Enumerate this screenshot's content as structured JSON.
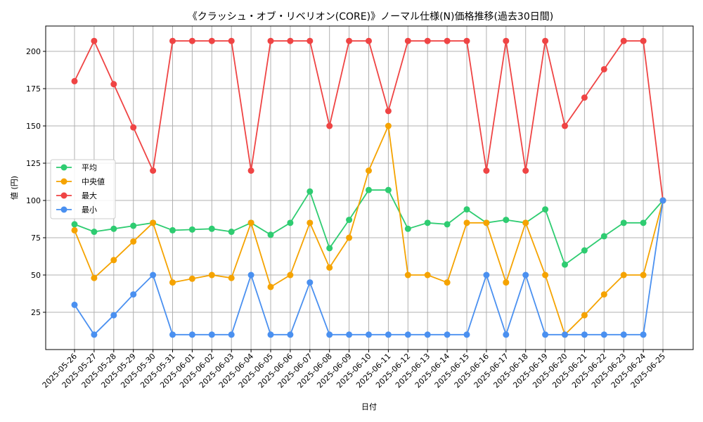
{
  "chart_data": {
    "type": "line",
    "title": "《クラッシュ・オブ・リベリオン(CORE)》ノーマル仕様(N)価格推移(過去30日間)",
    "xlabel": "日付",
    "ylabel": "値 (円)",
    "ylim": [
      0,
      217
    ],
    "yticks": [
      25,
      50,
      75,
      100,
      125,
      150,
      175,
      200
    ],
    "grid": true,
    "legend_position": "center-left",
    "categories": [
      "2025-05-26",
      "2025-05-27",
      "2025-05-28",
      "2025-05-29",
      "2025-05-30",
      "2025-05-31",
      "2025-06-01",
      "2025-06-02",
      "2025-06-03",
      "2025-06-04",
      "2025-06-05",
      "2025-06-06",
      "2025-06-07",
      "2025-06-08",
      "2025-06-09",
      "2025-06-10",
      "2025-06-11",
      "2025-06-12",
      "2025-06-13",
      "2025-06-14",
      "2025-06-15",
      "2025-06-16",
      "2025-06-17",
      "2025-06-18",
      "2025-06-19",
      "2025-06-20",
      "2025-06-21",
      "2025-06-22",
      "2025-06-23",
      "2025-06-24",
      "2025-06-25"
    ],
    "series": [
      {
        "name": "平均",
        "color": "#2ecc71",
        "values": [
          84,
          79,
          81,
          83,
          85,
          80,
          80.5,
          81,
          79,
          85,
          77,
          85,
          106,
          68,
          87,
          107,
          107,
          81,
          85,
          84,
          94,
          85,
          87,
          85,
          94,
          57,
          66.5,
          76,
          85,
          85,
          100
        ]
      },
      {
        "name": "中央値",
        "color": "#f5a300",
        "values": [
          80,
          48,
          60,
          72.5,
          85,
          45,
          47.5,
          50,
          48,
          85,
          42,
          50,
          85,
          55,
          75,
          120,
          150,
          50,
          50,
          45,
          85,
          85,
          45,
          85,
          50,
          10,
          23,
          37,
          50,
          50,
          100
        ]
      },
      {
        "name": "最大",
        "color": "#ef4444",
        "values": [
          180,
          207,
          178,
          149,
          120,
          207,
          207,
          207,
          207,
          120,
          207,
          207,
          207,
          150,
          207,
          207,
          160,
          207,
          207,
          207,
          207,
          120,
          207,
          120,
          207,
          150,
          169,
          188,
          207,
          207,
          100
        ]
      },
      {
        "name": "最小",
        "color": "#4a90f0",
        "values": [
          30,
          10,
          23,
          37,
          50,
          10,
          10,
          10,
          10,
          50,
          10,
          10,
          45,
          10,
          10,
          10,
          10,
          10,
          10,
          10,
          10,
          50,
          10,
          50,
          10,
          10,
          10,
          10,
          10,
          10,
          100
        ]
      }
    ]
  }
}
